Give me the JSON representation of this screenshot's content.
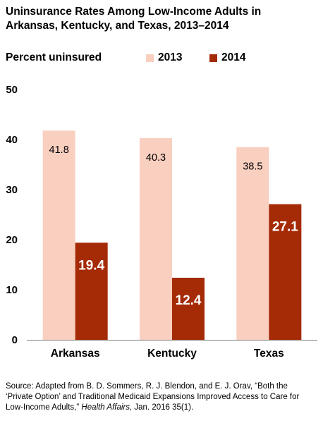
{
  "chart_data": {
    "type": "bar",
    "title": "Uninsurance Rates Among Low-Income Adults in Arkansas, Kentucky, and Texas, 2013–2014",
    "ylabel": "Percent uninsured",
    "xlabel": "",
    "categories": [
      "Arkansas",
      "Kentucky",
      "Texas"
    ],
    "series": [
      {
        "name": "2013",
        "values": [
          41.8,
          40.3,
          38.5
        ],
        "color": "#f9cfc0",
        "label_color": "#000000"
      },
      {
        "name": "2014",
        "values": [
          19.4,
          12.4,
          27.1
        ],
        "color": "#a52a06",
        "label_color": "#ffffff"
      }
    ],
    "ylim": [
      0,
      50
    ],
    "yticks": [
      "0",
      "10",
      "20",
      "30",
      "40",
      "50"
    ],
    "grid": false,
    "legend_position": "top-right"
  },
  "source": {
    "main": "Source: Adapted from B. D. Sommers, R. J. Blendon, and E. J. Orav, “Both the ‘Private Option’ and Traditional Medicaid Expansions Improved Access to Care for Low-Income Adults,”",
    "journal": "Health Affairs,",
    "tail": "Jan. 2016 35(1)."
  }
}
